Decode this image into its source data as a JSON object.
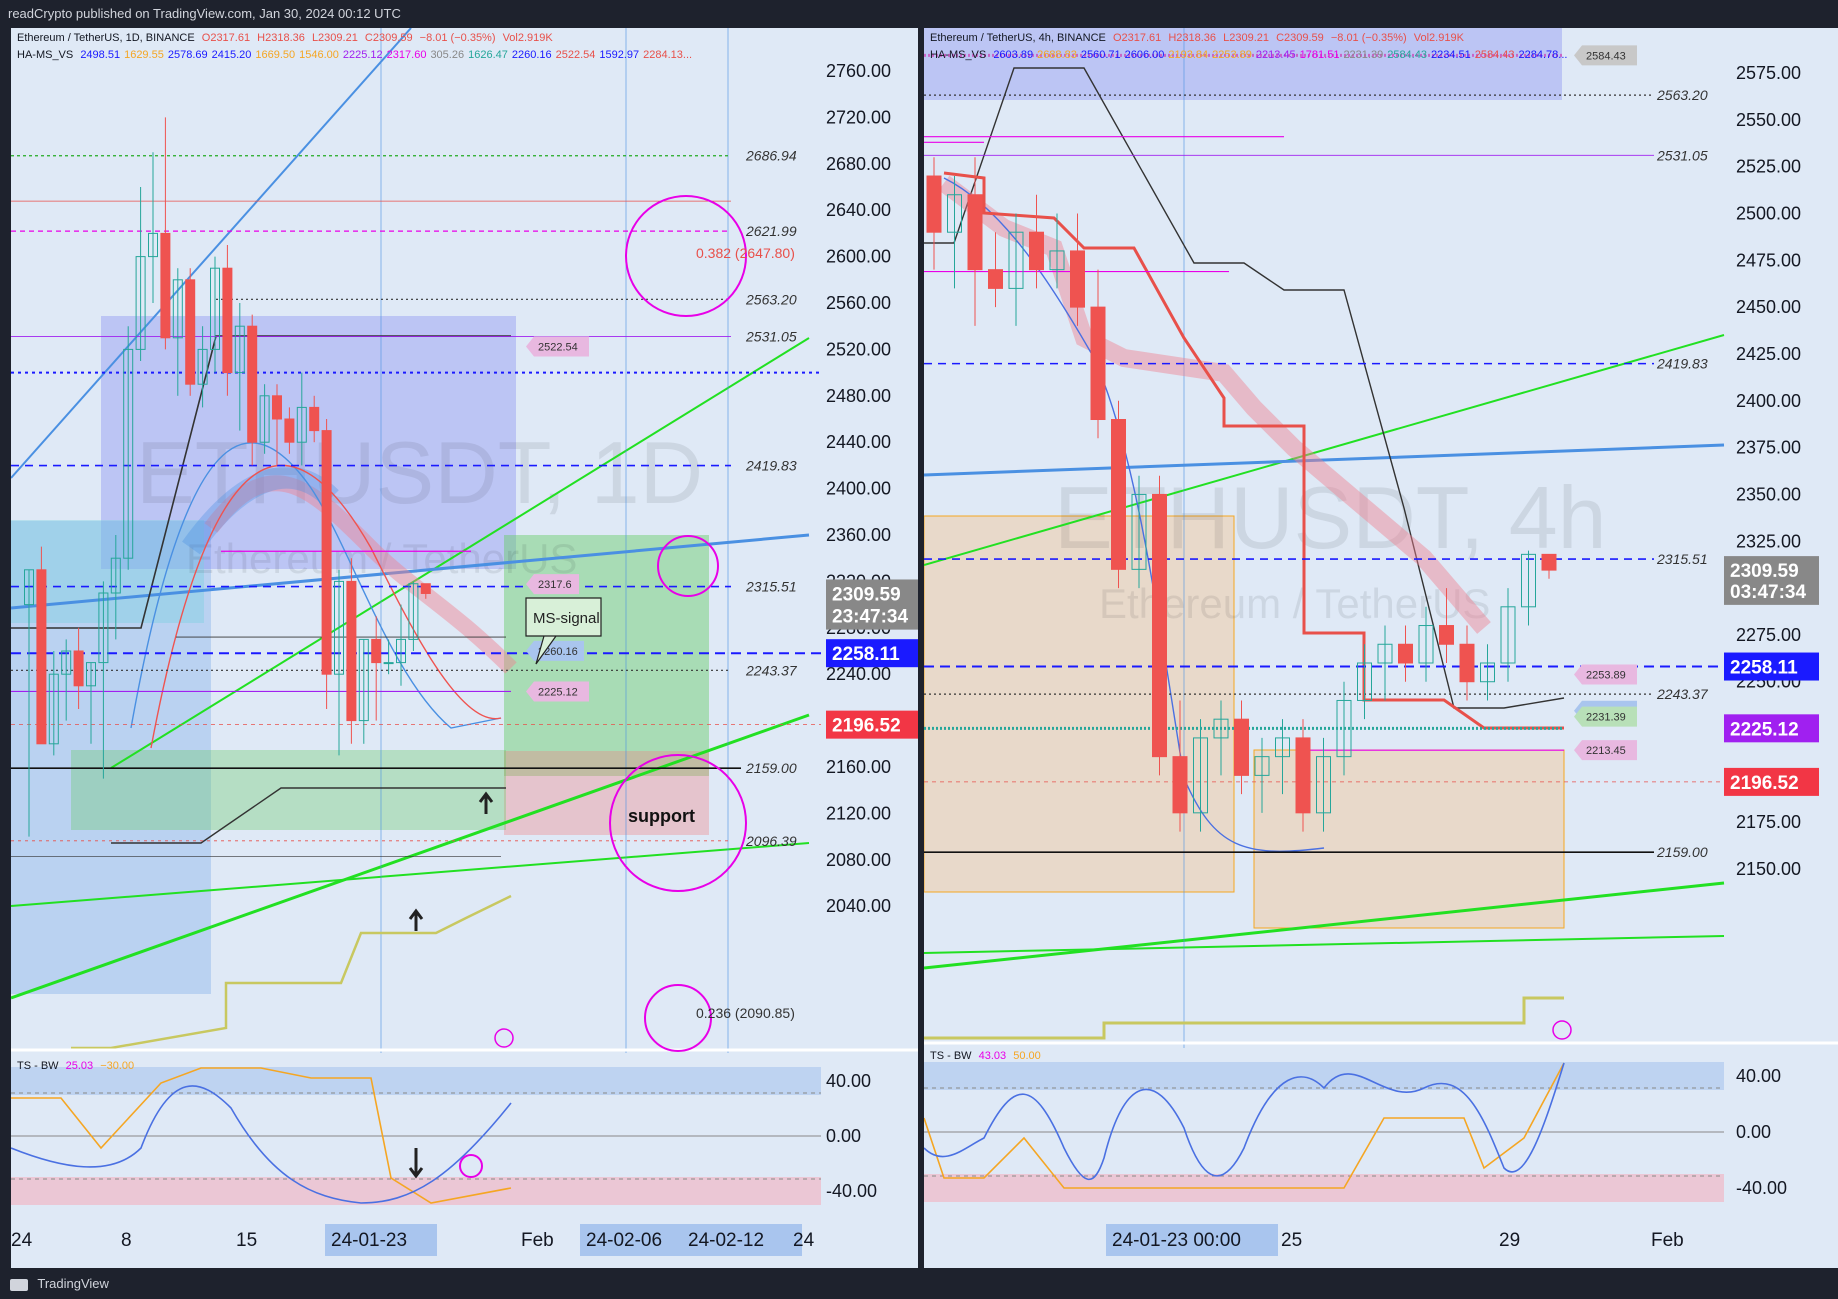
{
  "header": {
    "publisher_text": "readCrypto published on TradingView.com, Jan 30, 2024 00:12 UTC"
  },
  "footer": {
    "brand": "TradingView"
  },
  "left": {
    "legend_line1": {
      "symbol": "Ethereum / TetherUS, 1D, BINANCE",
      "o": "O2317.61",
      "h": "H2318.36",
      "l": "L2309.21",
      "c": "C2309.59",
      "chg": "−8.01 (−0.35%)",
      "vol": "Vol2.919K"
    },
    "legend_line2": {
      "name": "HA-MS_VS",
      "values": [
        "2498.51",
        "1629.55",
        "2578.69",
        "2415.20",
        "1669.50",
        "1546.00",
        "2225.12",
        "2317.60",
        "305.26",
        "1626.47",
        "2260.16",
        "2522.54",
        "1592.97",
        "2284.13..."
      ]
    },
    "watermark_symbol": "ETHUSDT, 1D",
    "watermark_name": "Ethereum / TetherUS",
    "price_axis": [
      "2760.00",
      "2720.00",
      "2680.00",
      "2640.00",
      "2600.00",
      "2560.00",
      "2520.00",
      "2480.00",
      "2440.00",
      "2400.00",
      "2360.00",
      "2320.00",
      "2280.00",
      "2240.00",
      "2200.00",
      "2160.00",
      "2120.00",
      "2080.00",
      "2040.00"
    ],
    "level_labels": [
      "2686.94",
      "2621.99",
      "2563.20",
      "2531.05",
      "2419.83",
      "2315.51",
      "2243.37",
      "2159.00",
      "2096.39"
    ],
    "fib_382": "0.382 (2647.80)",
    "fib_236": "0.236 (2090.85)",
    "price_tag": "2309.59",
    "countdown": "23:47:34",
    "tag_blue": "2258.11",
    "tag_red": "2196.52",
    "chip_2522": "2522.54",
    "chip_2317": "2317.6",
    "chip_2260": "2260.16",
    "chip_2225": "2225.12",
    "callout_text": "MS-signal",
    "support_text": "support",
    "time_axis": [
      "24",
      "8",
      "15",
      "24-01-23",
      "Feb",
      "24-02-06",
      "24-02-12",
      "24"
    ],
    "osc_legend": {
      "name": "TS - BW",
      "v1": "25.03",
      "v2": "−30.00"
    },
    "osc_axis": [
      "40.00",
      "0.00",
      "-40.00"
    ]
  },
  "right": {
    "legend_line1": {
      "symbol": "Ethereum / TetherUS, 4h, BINANCE",
      "o": "O2317.61",
      "h": "H2318.36",
      "l": "L2309.21",
      "c": "C2309.59",
      "chg": "−8.01 (−0.35%)",
      "vol": "Vol2.919K"
    },
    "legend_line2": {
      "name": "HA-MS_VS",
      "values": [
        "2603.89",
        "2688.83",
        "2560.71",
        "2606.00",
        "2193.84",
        "2253.89",
        "2213.45",
        "1781.51",
        "2231.39",
        "2584.43",
        "2234.51",
        "2584.43",
        "2284.78..."
      ]
    },
    "watermark_symbol": "ETHUSDT, 4h",
    "watermark_name": "Ethereum / TetherUS",
    "price_axis": [
      "2575.00",
      "2550.00",
      "2525.00",
      "2500.00",
      "2475.00",
      "2450.00",
      "2425.00",
      "2400.00",
      "2375.00",
      "2350.00",
      "2325.00",
      "2300.00",
      "2275.00",
      "2250.00",
      "2225.00",
      "2200.00",
      "2175.00",
      "2150.00"
    ],
    "level_labels": [
      "2563.20",
      "2531.05",
      "2419.83",
      "2315.51",
      "2243.37",
      "2159.00"
    ],
    "price_tag": "2309.59",
    "countdown": "03:47:34",
    "tag_blue": "2258.11",
    "tag_purple": "2225.12",
    "tag_red": "2196.52",
    "chip_2584": "2584.43",
    "chip_2253": "2253.89",
    "chip_2234": "2234.51",
    "chip_2231": "2231.39",
    "chip_2213": "2213.45",
    "time_axis": [
      "24-01-23   00:00",
      "25",
      "29",
      "Feb"
    ],
    "osc_legend": {
      "name": "TS - BW",
      "v1": "43.03",
      "v2": "50.00"
    },
    "osc_axis": [
      "40.00",
      "0.00",
      "-40.00"
    ]
  },
  "colors": {
    "background": "#dfe9f6",
    "candle_up": "#26a69a",
    "candle_down": "#ef5350",
    "green_line": "#22e022",
    "blue_line": "#4a90e2",
    "magenta": "#e800e8",
    "tag_blue": "#1a1aff",
    "tag_red": "#f23645",
    "tag_purple": "#a020f0"
  },
  "chart_data": [
    {
      "type": "candlestick",
      "title": "Ethereum / TetherUS, 1D, BINANCE",
      "timeframe": "1D",
      "ylim": [
        2040,
        2780
      ],
      "y_ticks": [
        2040,
        2080,
        2120,
        2160,
        2200,
        2240,
        2280,
        2320,
        2360,
        2400,
        2440,
        2480,
        2520,
        2560,
        2600,
        2640,
        2680,
        2720,
        2760
      ],
      "horizontal_levels": [
        2686.94,
        2621.99,
        2563.2,
        2531.05,
        2419.83,
        2315.51,
        2258.11,
        2243.37,
        2196.52,
        2159.0,
        2096.39
      ],
      "fib_levels": [
        {
          "label": "0.382",
          "value": 2647.8
        },
        {
          "label": "0.236",
          "value": 2090.85
        }
      ],
      "last_price": 2309.59,
      "candles": [
        [
          2300,
          2330,
          2100,
          2330
        ],
        [
          2330,
          2350,
          2180,
          2180
        ],
        [
          2180,
          2260,
          2170,
          2240
        ],
        [
          2240,
          2270,
          2200,
          2260
        ],
        [
          2260,
          2280,
          2210,
          2230
        ],
        [
          2230,
          2250,
          2180,
          2250
        ],
        [
          2250,
          2320,
          2150,
          2310
        ],
        [
          2310,
          2360,
          2270,
          2340
        ],
        [
          2340,
          2540,
          2330,
          2520
        ],
        [
          2520,
          2660,
          2510,
          2600
        ],
        [
          2600,
          2690,
          2560,
          2620
        ],
        [
          2620,
          2720,
          2520,
          2530
        ],
        [
          2530,
          2590,
          2480,
          2580
        ],
        [
          2580,
          2590,
          2480,
          2490
        ],
        [
          2490,
          2540,
          2470,
          2520
        ],
        [
          2520,
          2600,
          2500,
          2590
        ],
        [
          2590,
          2610,
          2480,
          2500
        ],
        [
          2500,
          2560,
          2450,
          2540
        ],
        [
          2540,
          2550,
          2420,
          2440
        ],
        [
          2440,
          2490,
          2430,
          2480
        ],
        [
          2480,
          2490,
          2420,
          2460
        ],
        [
          2460,
          2470,
          2430,
          2440
        ],
        [
          2440,
          2500,
          2420,
          2470
        ],
        [
          2470,
          2480,
          2440,
          2450
        ],
        [
          2450,
          2460,
          2210,
          2240
        ],
        [
          2240,
          2330,
          2170,
          2320
        ],
        [
          2320,
          2340,
          2180,
          2200
        ],
        [
          2200,
          2270,
          2180,
          2270
        ],
        [
          2270,
          2290,
          2200,
          2250
        ],
        [
          2250,
          2270,
          2240,
          2250
        ],
        [
          2250,
          2300,
          2230,
          2270
        ],
        [
          2270,
          2320,
          2260,
          2318
        ],
        [
          2318,
          2318,
          2305,
          2309.59
        ]
      ]
    },
    {
      "type": "candlestick",
      "title": "Ethereum / TetherUS, 4h, BINANCE",
      "timeframe": "4h",
      "ylim": [
        2130,
        2585
      ],
      "y_ticks": [
        2150,
        2175,
        2200,
        2225,
        2250,
        2275,
        2300,
        2325,
        2350,
        2375,
        2400,
        2425,
        2450,
        2475,
        2500,
        2525,
        2550,
        2575
      ],
      "horizontal_levels": [
        2563.2,
        2531.05,
        2419.83,
        2315.51,
        2258.11,
        2243.37,
        2225.12,
        2196.52,
        2159.0
      ],
      "last_price": 2309.59,
      "candles": [
        [
          2520,
          2530,
          2470,
          2490
        ],
        [
          2490,
          2520,
          2460,
          2510
        ],
        [
          2510,
          2530,
          2440,
          2470
        ],
        [
          2470,
          2490,
          2450,
          2460
        ],
        [
          2460,
          2500,
          2440,
          2490
        ],
        [
          2490,
          2510,
          2460,
          2470
        ],
        [
          2470,
          2500,
          2460,
          2480
        ],
        [
          2480,
          2500,
          2440,
          2450
        ],
        [
          2450,
          2470,
          2380,
          2390
        ],
        [
          2390,
          2400,
          2300,
          2310
        ],
        [
          2310,
          2360,
          2300,
          2350
        ],
        [
          2350,
          2360,
          2200,
          2210
        ],
        [
          2210,
          2240,
          2170,
          2180
        ],
        [
          2180,
          2230,
          2170,
          2220
        ],
        [
          2220,
          2240,
          2200,
          2230
        ],
        [
          2230,
          2240,
          2190,
          2200
        ],
        [
          2200,
          2220,
          2180,
          2210
        ],
        [
          2210,
          2230,
          2190,
          2220
        ],
        [
          2220,
          2230,
          2170,
          2180
        ],
        [
          2180,
          2220,
          2170,
          2210
        ],
        [
          2210,
          2250,
          2200,
          2240
        ],
        [
          2240,
          2270,
          2230,
          2260
        ],
        [
          2260,
          2280,
          2240,
          2270
        ],
        [
          2270,
          2280,
          2250,
          2260
        ],
        [
          2260,
          2290,
          2250,
          2280
        ],
        [
          2280,
          2300,
          2260,
          2270
        ],
        [
          2270,
          2280,
          2240,
          2250
        ],
        [
          2250,
          2270,
          2240,
          2260
        ],
        [
          2260,
          2300,
          2250,
          2290
        ],
        [
          2290,
          2320,
          2280,
          2318
        ],
        [
          2318,
          2318,
          2305,
          2309.59
        ]
      ]
    }
  ]
}
